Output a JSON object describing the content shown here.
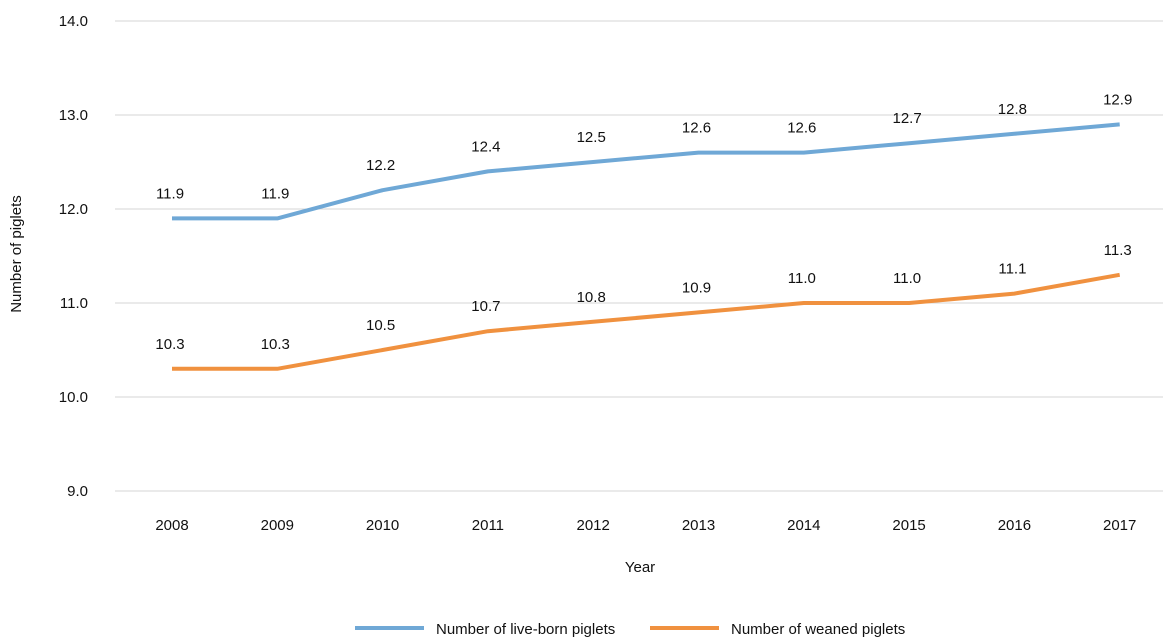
{
  "chart_data": {
    "type": "line",
    "title": "",
    "xlabel": "Year",
    "ylabel": "Number of piglets",
    "categories": [
      "2008",
      "2009",
      "2010",
      "2011",
      "2012",
      "2013",
      "2014",
      "2015",
      "2016",
      "2017"
    ],
    "ylim": [
      9.0,
      14.0
    ],
    "yticks": [
      "9.0",
      "10.0",
      "11.0",
      "12.0",
      "13.0",
      "14.0"
    ],
    "grid": "horizontal",
    "legend_position": "bottom",
    "series": [
      {
        "name": "Number of live-born piglets",
        "color": "#6fa8d6",
        "values": [
          11.9,
          11.9,
          12.2,
          12.4,
          12.5,
          12.6,
          12.6,
          12.7,
          12.8,
          12.9
        ],
        "labels": [
          "11.9",
          "11.9",
          "12.2",
          "12.4",
          "12.5",
          "12.6",
          "12.6",
          "12.7",
          "12.8",
          "12.9"
        ]
      },
      {
        "name": "Number of weaned piglets",
        "color": "#f0913f",
        "values": [
          10.3,
          10.3,
          10.5,
          10.7,
          10.8,
          10.9,
          11.0,
          11.0,
          11.1,
          11.3
        ],
        "labels": [
          "10.3",
          "10.3",
          "10.5",
          "10.7",
          "10.8",
          "10.9",
          "11.0",
          "11.0",
          "11.1",
          "11.3"
        ]
      }
    ]
  }
}
